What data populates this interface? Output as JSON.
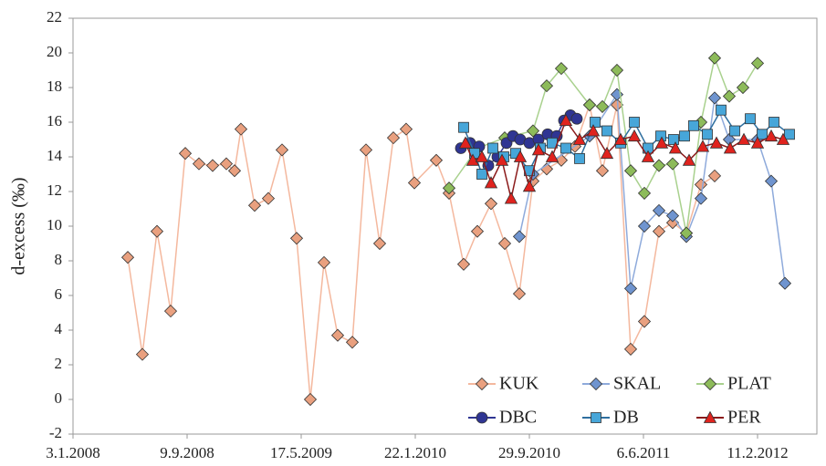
{
  "chart_data": {
    "type": "line",
    "y_label": "d-excess (‰)",
    "xlim": [
      "2008-01-03",
      "2012-06-20"
    ],
    "xticks": [
      {
        "value": "2008-01-03",
        "label": "3.1.2008"
      },
      {
        "value": "2008-09-09",
        "label": "9.9.2008"
      },
      {
        "value": "2009-05-17",
        "label": "17.5.2009"
      },
      {
        "value": "2010-01-22",
        "label": "22.1.2010"
      },
      {
        "value": "2010-09-29",
        "label": "29.9.2010"
      },
      {
        "value": "2011-06-06",
        "label": "6.6.2011"
      },
      {
        "value": "2012-02-11",
        "label": "11.2.2012"
      }
    ],
    "ylim": [
      -2,
      22
    ],
    "yticks": [
      -2,
      0,
      2,
      4,
      6,
      8,
      10,
      12,
      14,
      16,
      18,
      20,
      22
    ],
    "grid": false,
    "legend": "lower right",
    "series": [
      {
        "name": "KUK",
        "marker": "diamond",
        "color": "#e9a07f",
        "line_color": "#f4b89e",
        "x": [
          "2008-05-02",
          "2008-06-03",
          "2008-07-05",
          "2008-08-04",
          "2008-09-05",
          "2008-10-05",
          "2008-11-04",
          "2008-12-04",
          "2008-12-22",
          "2009-01-05",
          "2009-02-04",
          "2009-03-06",
          "2009-04-05",
          "2009-05-07",
          "2009-06-06",
          "2009-07-06",
          "2009-08-05",
          "2009-09-06",
          "2009-10-06",
          "2009-11-05",
          "2009-12-05",
          "2010-01-02",
          "2010-01-20",
          "2010-03-09",
          "2010-04-06",
          "2010-05-08",
          "2010-06-07",
          "2010-07-07",
          "2010-08-06",
          "2010-09-07",
          "2010-10-07",
          "2010-11-06",
          "2010-12-08",
          "2011-01-07",
          "2011-02-08",
          "2011-03-08",
          "2011-04-09",
          "2011-05-09",
          "2011-06-08",
          "2011-07-10",
          "2011-08-09",
          "2011-09-08",
          "2011-10-10",
          "2011-11-09"
        ],
        "values": [
          8.2,
          2.6,
          9.7,
          5.1,
          14.2,
          13.6,
          13.5,
          13.6,
          13.2,
          15.6,
          11.2,
          11.6,
          14.4,
          9.3,
          0.0,
          7.9,
          3.7,
          3.3,
          14.4,
          9.0,
          15.1,
          15.6,
          12.5,
          13.8,
          11.9,
          7.8,
          9.7,
          11.3,
          9.0,
          6.1,
          12.6,
          13.3,
          13.8,
          14.6,
          17.0,
          13.2,
          17.0,
          2.9,
          4.5,
          9.7,
          10.2,
          9.6,
          12.4,
          12.9
        ]
      },
      {
        "name": "SKAL",
        "marker": "diamond",
        "color": "#6f94cf",
        "line_color": "#8eaadb",
        "x": [
          "2010-09-07",
          "2010-10-07",
          "2011-02-08",
          "2011-04-09",
          "2011-05-09",
          "2011-06-08",
          "2011-07-10",
          "2011-08-09",
          "2011-09-08",
          "2011-10-10",
          "2011-11-09",
          "2011-12-11",
          "2012-02-11",
          "2012-03-12",
          "2012-04-11"
        ],
        "values": [
          9.4,
          13.0,
          15.2,
          17.6,
          6.4,
          10.0,
          10.9,
          10.6,
          9.4,
          11.6,
          17.4,
          15.0,
          15.0,
          12.6,
          6.7
        ]
      },
      {
        "name": "PLAT",
        "marker": "diamond",
        "color": "#8dbb5a",
        "line_color": "#a9d18e",
        "x": [
          "2010-04-06",
          "2010-06-07",
          "2010-08-06",
          "2010-10-07",
          "2010-11-06",
          "2010-12-08",
          "2011-02-08",
          "2011-03-08",
          "2011-04-09",
          "2011-05-09",
          "2011-06-08",
          "2011-07-10",
          "2011-08-09",
          "2011-09-08",
          "2011-10-10",
          "2011-11-09",
          "2011-12-11",
          "2012-01-10",
          "2012-02-11"
        ],
        "values": [
          12.2,
          14.5,
          15.1,
          15.5,
          18.1,
          19.1,
          17.0,
          16.9,
          19.0,
          13.2,
          11.9,
          13.5,
          13.6,
          9.6,
          16.0,
          19.7,
          17.5,
          18.0,
          19.4
        ]
      },
      {
        "name": "DBC",
        "marker": "circle",
        "color": "#2f3593",
        "line_color": "#2f3593",
        "x": [
          "2010-05-02",
          "2010-05-22",
          "2010-06-11",
          "2010-07-01",
          "2010-07-21",
          "2010-08-10",
          "2010-08-24",
          "2010-09-09",
          "2010-09-29",
          "2010-10-19",
          "2010-11-08",
          "2010-11-28",
          "2010-12-14",
          "2010-12-28",
          "2011-01-11"
        ],
        "values": [
          14.5,
          14.8,
          14.6,
          13.5,
          14.0,
          14.8,
          15.2,
          15.0,
          14.8,
          15.0,
          15.3,
          15.2,
          16.1,
          16.4,
          16.2
        ]
      },
      {
        "name": "DB",
        "marker": "square",
        "color": "#47a6d9",
        "line_color": "#2f6f9f",
        "x": [
          "2010-05-08",
          "2010-06-01",
          "2010-06-17",
          "2010-07-11",
          "2010-08-04",
          "2010-08-30",
          "2010-09-29",
          "2010-10-23",
          "2010-11-18",
          "2010-12-18",
          "2011-01-17",
          "2011-02-20",
          "2011-03-18",
          "2011-04-17",
          "2011-05-17",
          "2011-06-16",
          "2011-07-14",
          "2011-08-11",
          "2011-09-04",
          "2011-09-24",
          "2011-10-24",
          "2011-11-23",
          "2011-12-23",
          "2012-01-26",
          "2012-02-21",
          "2012-03-18",
          "2012-04-21"
        ],
        "values": [
          15.7,
          14.2,
          13.0,
          14.5,
          14.0,
          14.2,
          13.2,
          14.5,
          14.8,
          14.5,
          13.9,
          16.0,
          15.5,
          14.8,
          16.0,
          14.5,
          15.2,
          15.0,
          15.2,
          15.8,
          15.3,
          16.7,
          15.5,
          16.2,
          15.3,
          16.0,
          15.3
        ]
      },
      {
        "name": "PER",
        "marker": "triangle",
        "color": "#e0231e",
        "line_color": "#8b1a1a",
        "x": [
          "2010-05-12",
          "2010-05-28",
          "2010-06-17",
          "2010-07-07",
          "2010-07-31",
          "2010-08-20",
          "2010-09-09",
          "2010-09-29",
          "2010-10-19",
          "2010-11-18",
          "2010-12-18",
          "2011-01-17",
          "2011-02-16",
          "2011-03-18",
          "2011-04-17",
          "2011-05-17",
          "2011-06-16",
          "2011-07-16",
          "2011-08-15",
          "2011-09-14",
          "2011-10-14",
          "2011-11-13",
          "2011-12-13",
          "2012-01-12",
          "2012-02-11",
          "2012-03-12",
          "2012-04-07"
        ],
        "values": [
          14.8,
          13.8,
          14.0,
          12.5,
          13.8,
          11.6,
          14.0,
          12.3,
          14.4,
          14.0,
          16.1,
          15.0,
          15.5,
          14.2,
          15.0,
          15.2,
          14.0,
          14.8,
          14.5,
          13.8,
          14.6,
          14.8,
          14.5,
          15.0,
          14.8,
          15.2,
          15.0
        ]
      }
    ]
  }
}
